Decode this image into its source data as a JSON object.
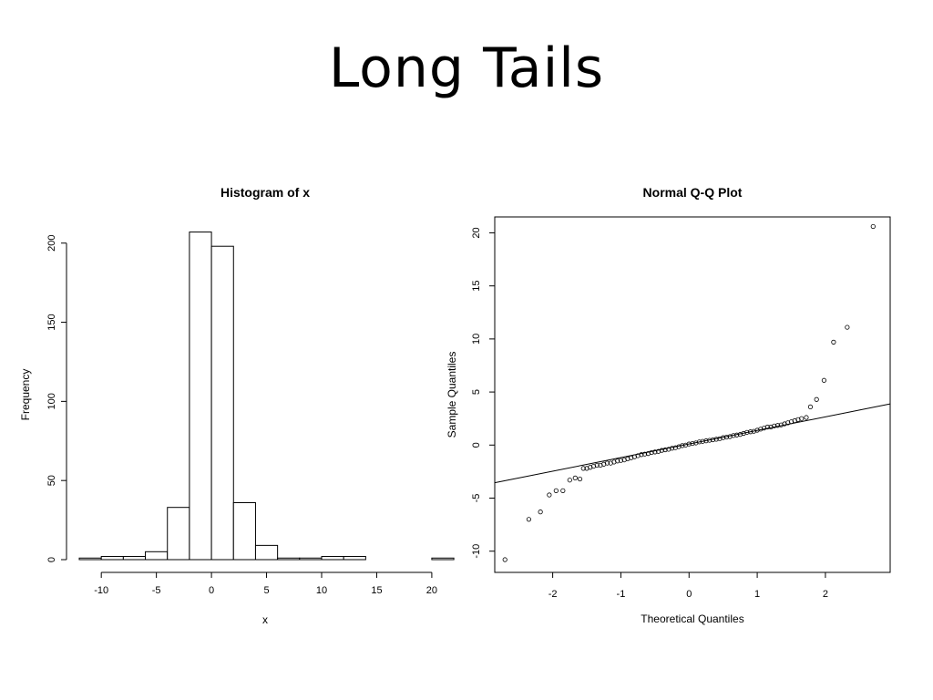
{
  "slide": {
    "title": "Long Tails"
  },
  "chart_data": [
    {
      "type": "bar",
      "title": "Histogram of x",
      "xlabel": "x",
      "ylabel": "Frequency",
      "bin_edges": [
        -12,
        -10,
        -8,
        -6,
        -4,
        -2,
        0,
        2,
        4,
        6,
        8,
        10,
        12,
        14,
        16,
        18,
        20,
        22
      ],
      "values": [
        1,
        2,
        2,
        5,
        33,
        207,
        198,
        36,
        9,
        1,
        1,
        2,
        2,
        0,
        0,
        0,
        1
      ],
      "xticks": [
        -10,
        -5,
        0,
        5,
        10,
        15,
        20
      ],
      "yticks": [
        0,
        50,
        100,
        150,
        200
      ],
      "xlim": [
        -12,
        21
      ],
      "ylim": [
        0,
        220
      ]
    },
    {
      "type": "scatter",
      "title": "Normal Q-Q Plot",
      "xlabel": "Theoretical Quantiles",
      "ylabel": "Sample Quantiles",
      "xticks": [
        -2,
        -1,
        0,
        1,
        2
      ],
      "yticks": [
        -10,
        -5,
        0,
        5,
        10,
        15,
        20
      ],
      "xlim": [
        -2.85,
        2.95
      ],
      "ylim": [
        -12,
        21.5
      ],
      "reference_line": {
        "intercept": 0.1,
        "slope": 1.28
      },
      "points": [
        [
          -2.7,
          -10.8
        ],
        [
          -2.35,
          -7.0
        ],
        [
          -2.18,
          -6.3
        ],
        [
          -2.05,
          -4.7
        ],
        [
          -1.95,
          -4.3
        ],
        [
          -1.85,
          -4.3
        ],
        [
          -1.75,
          -3.3
        ],
        [
          -1.67,
          -3.1
        ],
        [
          -1.6,
          -3.2
        ],
        [
          -1.55,
          -2.2
        ],
        [
          -1.5,
          -2.2
        ],
        [
          -1.45,
          -2.1
        ],
        [
          -1.4,
          -2.0
        ],
        [
          -1.35,
          -1.9
        ],
        [
          -1.3,
          -1.9
        ],
        [
          -1.25,
          -1.8
        ],
        [
          -1.2,
          -1.7
        ],
        [
          -1.15,
          -1.7
        ],
        [
          -1.1,
          -1.6
        ],
        [
          -1.05,
          -1.5
        ],
        [
          -1.0,
          -1.45
        ],
        [
          -0.95,
          -1.4
        ],
        [
          -0.9,
          -1.3
        ],
        [
          -0.85,
          -1.2
        ],
        [
          -0.8,
          -1.1
        ],
        [
          -0.75,
          -1.0
        ],
        [
          -0.7,
          -0.9
        ],
        [
          -0.65,
          -0.85
        ],
        [
          -0.6,
          -0.8
        ],
        [
          -0.55,
          -0.7
        ],
        [
          -0.5,
          -0.65
        ],
        [
          -0.45,
          -0.6
        ],
        [
          -0.4,
          -0.5
        ],
        [
          -0.35,
          -0.45
        ],
        [
          -0.3,
          -0.4
        ],
        [
          -0.25,
          -0.3
        ],
        [
          -0.2,
          -0.25
        ],
        [
          -0.15,
          -0.15
        ],
        [
          -0.1,
          -0.05
        ],
        [
          -0.05,
          0.0
        ],
        [
          0.0,
          0.1
        ],
        [
          0.05,
          0.15
        ],
        [
          0.1,
          0.2
        ],
        [
          0.15,
          0.3
        ],
        [
          0.2,
          0.35
        ],
        [
          0.25,
          0.4
        ],
        [
          0.3,
          0.45
        ],
        [
          0.35,
          0.5
        ],
        [
          0.4,
          0.55
        ],
        [
          0.45,
          0.6
        ],
        [
          0.5,
          0.7
        ],
        [
          0.55,
          0.75
        ],
        [
          0.6,
          0.8
        ],
        [
          0.65,
          0.9
        ],
        [
          0.7,
          0.95
        ],
        [
          0.75,
          1.0
        ],
        [
          0.8,
          1.1
        ],
        [
          0.85,
          1.2
        ],
        [
          0.9,
          1.25
        ],
        [
          0.95,
          1.3
        ],
        [
          1.0,
          1.4
        ],
        [
          1.05,
          1.5
        ],
        [
          1.1,
          1.6
        ],
        [
          1.15,
          1.7
        ],
        [
          1.2,
          1.7
        ],
        [
          1.25,
          1.8
        ],
        [
          1.3,
          1.85
        ],
        [
          1.35,
          1.9
        ],
        [
          1.4,
          2.0
        ],
        [
          1.45,
          2.1
        ],
        [
          1.5,
          2.2
        ],
        [
          1.55,
          2.3
        ],
        [
          1.6,
          2.4
        ],
        [
          1.65,
          2.5
        ],
        [
          1.72,
          2.6
        ],
        [
          1.78,
          3.6
        ],
        [
          1.87,
          4.3
        ],
        [
          1.98,
          6.1
        ],
        [
          2.12,
          9.7
        ],
        [
          2.32,
          11.1
        ],
        [
          2.7,
          20.6
        ]
      ]
    }
  ]
}
